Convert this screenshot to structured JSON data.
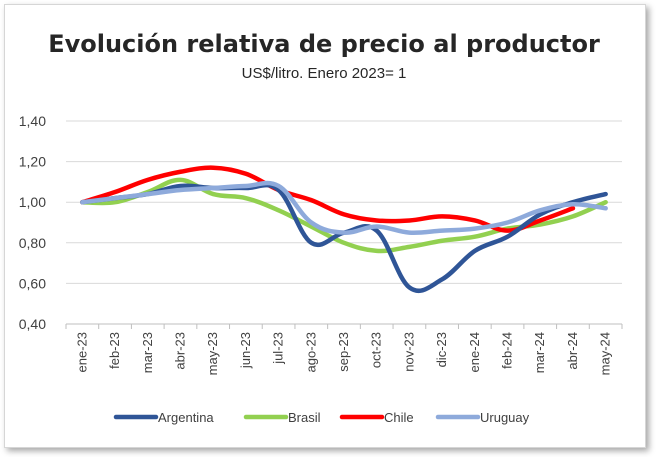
{
  "chart_data": {
    "type": "line",
    "title": "Evolución relativa de precio al productor",
    "subtitle": "US$/litro. Enero 2023= 1",
    "xlabel": "",
    "ylabel": "",
    "categories": [
      "ene-23",
      "feb-23",
      "mar-23",
      "abr-23",
      "may-23",
      "jun-23",
      "jul-23",
      "ago-23",
      "sep-23",
      "oct-23",
      "nov-23",
      "dic-23",
      "ene-24",
      "feb-24",
      "mar-24",
      "abr-24",
      "may-24"
    ],
    "ylim": [
      0.4,
      1.4
    ],
    "yticks": [
      0.4,
      0.6,
      0.8,
      1.0,
      1.2,
      1.4
    ],
    "ytick_labels": [
      "0,40",
      "0,60",
      "0,80",
      "1,00",
      "1,20",
      "1,40"
    ],
    "grid": "horizontal",
    "legend_position": "bottom",
    "series": [
      {
        "name": "Argentina",
        "color": "#2f5597",
        "values": [
          1.0,
          1.02,
          1.04,
          1.08,
          1.07,
          1.07,
          1.06,
          0.8,
          0.85,
          0.86,
          0.58,
          0.62,
          0.76,
          0.83,
          0.94,
          1.0,
          1.04
        ]
      },
      {
        "name": "Brasil",
        "color": "#92d050",
        "values": [
          1.0,
          1.0,
          1.05,
          1.11,
          1.04,
          1.02,
          0.96,
          0.88,
          0.8,
          0.76,
          0.78,
          0.81,
          0.83,
          0.87,
          0.89,
          0.93,
          1.0
        ]
      },
      {
        "name": "Chile",
        "color": "#ff0000",
        "values": [
          1.0,
          1.05,
          1.11,
          1.15,
          1.17,
          1.14,
          1.06,
          1.01,
          0.94,
          0.91,
          0.91,
          0.93,
          0.91,
          0.86,
          0.91,
          0.97,
          null
        ]
      },
      {
        "name": "Uruguay",
        "color": "#8eaadb",
        "values": [
          1.0,
          1.02,
          1.04,
          1.06,
          1.07,
          1.08,
          1.08,
          0.9,
          0.85,
          0.88,
          0.85,
          0.86,
          0.87,
          0.9,
          0.96,
          0.99,
          0.97
        ]
      }
    ]
  }
}
